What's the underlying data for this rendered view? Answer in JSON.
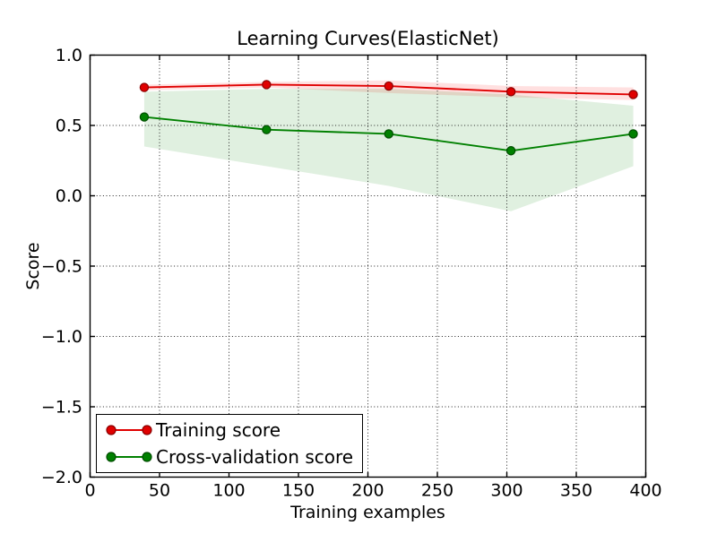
{
  "chart_data": {
    "type": "line",
    "title": "Learning Curves(ElasticNet)",
    "xlabel": "Training examples",
    "ylabel": "Score",
    "xlim": [
      0,
      400
    ],
    "ylim": [
      -2.0,
      1.0
    ],
    "x_ticks": [
      0,
      50,
      100,
      150,
      200,
      250,
      300,
      350,
      400
    ],
    "x_tick_labels": [
      "0",
      "50",
      "100",
      "150",
      "200",
      "250",
      "300",
      "350",
      "400"
    ],
    "y_ticks": [
      1.0,
      0.5,
      0.0,
      -0.5,
      -1.0,
      -1.5,
      -2.0
    ],
    "y_tick_labels": [
      "1.0",
      "0.5",
      "0.0",
      "−0.5",
      "−1.0",
      "−1.5",
      "−2.0"
    ],
    "grid": true,
    "grid_style": "dotted",
    "legend_position": "lower-left",
    "x": [
      39,
      127,
      215,
      303,
      391
    ],
    "series": [
      {
        "name": "Training score",
        "color": "#e00000",
        "marker_edge_color": "#8b0000",
        "values": [
          0.77,
          0.79,
          0.78,
          0.74,
          0.72
        ],
        "band_upper": [
          0.79,
          0.81,
          0.82,
          0.78,
          0.77
        ],
        "band_lower": [
          0.75,
          0.77,
          0.73,
          0.7,
          0.68
        ],
        "band_color": "#ff0000",
        "band_alpha": 0.12
      },
      {
        "name": "Cross-validation score",
        "color": "#008000",
        "marker_edge_color": "#004d00",
        "values": [
          0.56,
          0.47,
          0.44,
          0.32,
          0.44
        ],
        "band_upper": [
          0.74,
          0.76,
          0.76,
          0.72,
          0.64
        ],
        "band_lower": [
          0.35,
          0.21,
          0.07,
          -0.11,
          0.21
        ],
        "band_color": "#008000",
        "band_alpha": 0.12
      }
    ]
  }
}
